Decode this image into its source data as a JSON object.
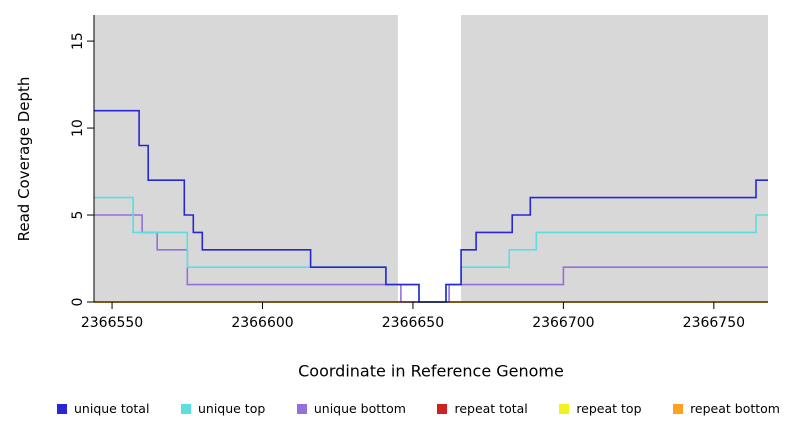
{
  "chart_data": {
    "type": "line",
    "subtype": "step-after",
    "title": "",
    "xlabel": "Coordinate in Reference Genome",
    "ylabel": "Read Coverage Depth",
    "xlim": [
      2366544,
      2366768
    ],
    "ylim": [
      0,
      16.5
    ],
    "x_ticks": [
      2366550,
      2366600,
      2366650,
      2366700,
      2366750
    ],
    "y_ticks": [
      0,
      5,
      10,
      15
    ],
    "grid": false,
    "plot_bg": "#d8d8d8",
    "outer_bg": "#ffffff",
    "highlight_region": {
      "x0": 2366645,
      "x1": 2366666,
      "color": "#ffffff"
    },
    "legend_position": "bottom",
    "series": [
      {
        "name": "repeat total",
        "color": "#cc2222",
        "steps": [
          [
            2366544,
            0
          ]
        ]
      },
      {
        "name": "repeat top",
        "color": "#f2f21f",
        "steps": [
          [
            2366544,
            0
          ]
        ]
      },
      {
        "name": "repeat bottom",
        "color": "#ffa020",
        "steps": [
          [
            2366544,
            0
          ]
        ]
      },
      {
        "name": "unique bottom",
        "color": "#9370db",
        "steps": [
          [
            2366544,
            5
          ],
          [
            2366560,
            4
          ],
          [
            2366565,
            3
          ],
          [
            2366575,
            1
          ],
          [
            2366646,
            0
          ],
          [
            2366662,
            1
          ],
          [
            2366700,
            2
          ]
        ]
      },
      {
        "name": "unique top",
        "color": "#5cdede",
        "steps": [
          [
            2366544,
            6
          ],
          [
            2366557,
            4
          ],
          [
            2366575,
            2
          ],
          [
            2366641,
            1
          ],
          [
            2366652,
            0
          ],
          [
            2366661,
            1
          ],
          [
            2366666,
            2
          ],
          [
            2366682,
            3
          ],
          [
            2366691,
            4
          ],
          [
            2366764,
            5
          ]
        ]
      },
      {
        "name": "unique total",
        "color": "#2727d4",
        "steps": [
          [
            2366544,
            11
          ],
          [
            2366559,
            9
          ],
          [
            2366562,
            7
          ],
          [
            2366574,
            5
          ],
          [
            2366577,
            4
          ],
          [
            2366580,
            3
          ],
          [
            2366616,
            2
          ],
          [
            2366641,
            1
          ],
          [
            2366652,
            0
          ],
          [
            2366661,
            1
          ],
          [
            2366666,
            3
          ],
          [
            2366671,
            4
          ],
          [
            2366683,
            5
          ],
          [
            2366689,
            6
          ],
          [
            2366764,
            7
          ]
        ]
      }
    ],
    "legend": [
      {
        "label": "unique total",
        "color": "#2727d4"
      },
      {
        "label": "unique top",
        "color": "#5cdede"
      },
      {
        "label": "unique bottom",
        "color": "#9370db"
      },
      {
        "label": "repeat total",
        "color": "#cc2222"
      },
      {
        "label": "repeat top",
        "color": "#f2f21f"
      },
      {
        "label": "repeat bottom",
        "color": "#ffa020"
      }
    ]
  }
}
